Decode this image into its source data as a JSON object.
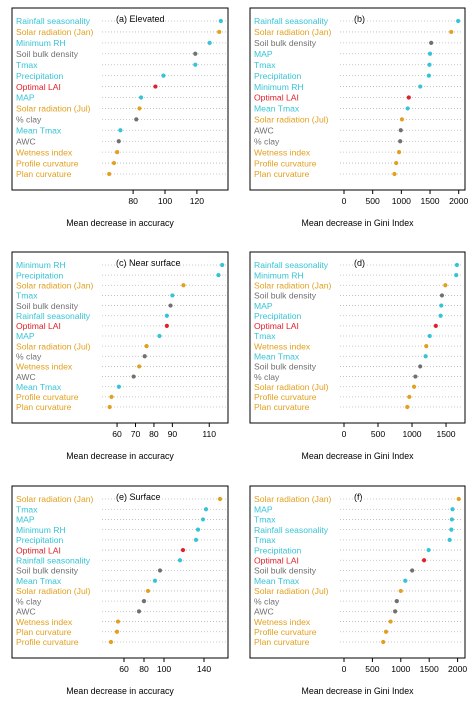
{
  "colors": {
    "cyan": "#35c4d6",
    "orange": "#e2a01e",
    "gray": "#707070",
    "red": "#e0202a"
  },
  "chart_data": [
    {
      "type": "scatter",
      "style": "dot-plot",
      "title": "(a) Elevated",
      "xlabel": "Mean decrease in accuracy",
      "xlim": [
        63,
        137
      ],
      "xticks": [
        80,
        100,
        120
      ],
      "categories": [
        "Rainfall seasonality",
        "Solar radiation (Jan)",
        "Minimum RH",
        "Soil bulk density",
        "Tmax",
        "Precipitation",
        "Optimal LAI",
        "MAP",
        "Solar radiation (Jul)",
        "% clay",
        "Mean Tmax",
        "AWC",
        "Wetness index",
        "Profile curvature",
        "Plan curvature"
      ],
      "label_colors": [
        "cyan",
        "orange",
        "cyan",
        "gray",
        "cyan",
        "cyan",
        "red",
        "cyan",
        "orange",
        "gray",
        "cyan",
        "gray",
        "orange",
        "orange",
        "orange"
      ],
      "values": [
        135,
        134,
        128,
        119,
        119,
        99,
        94,
        85,
        84,
        82,
        72,
        71,
        70,
        68,
        65
      ]
    },
    {
      "type": "scatter",
      "style": "dot-plot",
      "title": "(b)",
      "xlabel": "Mean decrease in Gini Index",
      "xlim": [
        0,
        2040
      ],
      "xticks": [
        0,
        500,
        1000,
        1500,
        2000
      ],
      "categories": [
        "Rainfall seasonality",
        "Solar radiation (Jan)",
        "Soil bulk density",
        "MAP",
        "Tmax",
        "Precipitation",
        "Minimum RH",
        "Optimal LAI",
        "Mean Tmax",
        "Solar radiation (Jul)",
        "AWC",
        "% clay",
        "Wetness index",
        "Profile curvature",
        "Plan curvature"
      ],
      "label_colors": [
        "cyan",
        "orange",
        "gray",
        "cyan",
        "cyan",
        "cyan",
        "cyan",
        "red",
        "cyan",
        "orange",
        "gray",
        "gray",
        "orange",
        "orange",
        "orange"
      ],
      "values": [
        1990,
        1870,
        1520,
        1500,
        1490,
        1480,
        1330,
        1130,
        1110,
        1010,
        990,
        980,
        960,
        910,
        880
      ]
    },
    {
      "type": "scatter",
      "style": "dot-plot",
      "title": "(c) Near surface",
      "xlabel": "Mean decrease in accuracy",
      "xlim": [
        54,
        118
      ],
      "xticks": [
        60,
        70,
        80,
        90,
        110
      ],
      "categories": [
        "Minimum RH",
        "Precipitation",
        "Solar radiation (Jan)",
        "Tmax",
        "Soil bulk density",
        "Rainfall seasonality",
        "Optimal LAI",
        "MAP",
        "Solar radiation (Jul)",
        "% clay",
        "Wetness index",
        "AWC",
        "Mean Tmax",
        "Profile curvature",
        "Plan curvature"
      ],
      "label_colors": [
        "cyan",
        "cyan",
        "orange",
        "cyan",
        "gray",
        "cyan",
        "red",
        "cyan",
        "orange",
        "gray",
        "orange",
        "gray",
        "cyan",
        "orange",
        "orange"
      ],
      "values": [
        117,
        115,
        96,
        90,
        89,
        87,
        87,
        83,
        76,
        75,
        72,
        69,
        61,
        57,
        56
      ]
    },
    {
      "type": "scatter",
      "style": "dot-plot",
      "title": "(d)",
      "xlabel": "Mean decrease in Gini Index",
      "xlim": [
        0,
        1720
      ],
      "xticks": [
        0,
        500,
        1000,
        1500
      ],
      "categories": [
        "Rainfall seasonality",
        "Minimum RH",
        "Solar radiation (Jan)",
        "Soil bulk density",
        "MAP",
        "Precipitation",
        "Optimal LAI",
        "Tmax",
        "Wetness index",
        "Mean Tmax",
        "Soil bulk density",
        "% clay",
        "Solar radiation (Jul)",
        "Profile curvature",
        "Plan curvature"
      ],
      "label_colors": [
        "cyan",
        "cyan",
        "orange",
        "gray",
        "cyan",
        "cyan",
        "red",
        "cyan",
        "orange",
        "cyan",
        "gray",
        "gray",
        "orange",
        "orange",
        "orange"
      ],
      "values": [
        1660,
        1650,
        1490,
        1440,
        1430,
        1420,
        1350,
        1260,
        1210,
        1200,
        1120,
        1050,
        1030,
        960,
        930
      ]
    },
    {
      "type": "scatter",
      "style": "dot-plot",
      "title": "(e) Surface",
      "xlabel": "Mean decrease in accuracy",
      "xlim": [
        42,
        160
      ],
      "xticks": [
        60,
        80,
        100,
        140
      ],
      "categories": [
        "Solar radiation (Jan)",
        "Tmax",
        "MAP",
        "Minimum RH",
        "Precipitation",
        "Optimal LAI",
        "Rainfall seasonality",
        "Soil bulk density",
        "Mean Tmax",
        "Solar radiation (Jul)",
        "% clay",
        "AWC",
        "Wetness index",
        "Plan curvature",
        "Profile curvature"
      ],
      "label_colors": [
        "orange",
        "cyan",
        "cyan",
        "cyan",
        "cyan",
        "red",
        "cyan",
        "gray",
        "cyan",
        "orange",
        "gray",
        "gray",
        "orange",
        "orange",
        "orange"
      ],
      "values": [
        156,
        142,
        139,
        134,
        132,
        119,
        116,
        96,
        91,
        84,
        80,
        75,
        54,
        53,
        47
      ]
    },
    {
      "type": "scatter",
      "style": "dot-plot",
      "title": "(f)",
      "xlabel": "Mean decrease in Gini Index",
      "xlim": [
        0,
        2060
      ],
      "xticks": [
        0,
        500,
        1000,
        1500,
        2000
      ],
      "categories": [
        "Solar radiation (Jan)",
        "MAP",
        "Tmax",
        "Rainfall seasonality",
        "Tmax",
        "Precipitation",
        "Optimal LAI",
        "Soil bulk density",
        "Mean Tmax",
        "Solar radiation (Jul)",
        "% clay",
        "AWC",
        "Wetness index",
        "Profile curvature",
        "Plan curvature"
      ],
      "label_colors": [
        "orange",
        "cyan",
        "cyan",
        "cyan",
        "cyan",
        "cyan",
        "red",
        "gray",
        "cyan",
        "orange",
        "gray",
        "gray",
        "orange",
        "orange",
        "orange"
      ],
      "values": [
        2020,
        1910,
        1900,
        1890,
        1860,
        1490,
        1410,
        1200,
        1080,
        1000,
        930,
        900,
        820,
        740,
        690
      ]
    }
  ]
}
